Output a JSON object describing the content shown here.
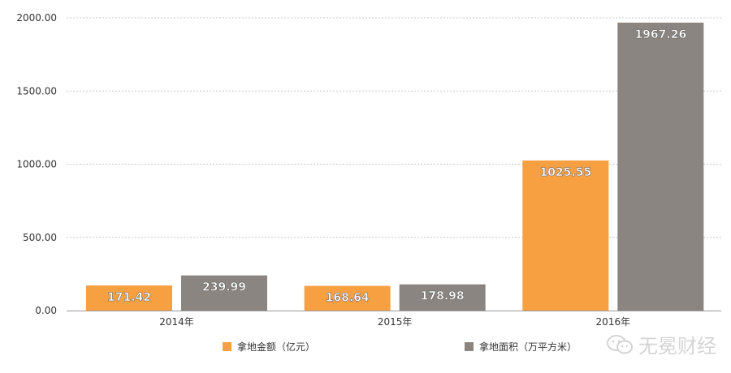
{
  "chart_data": {
    "type": "bar",
    "categories": [
      "2014年",
      "2015年",
      "2016年"
    ],
    "series": [
      {
        "name": "拿地金额（亿元）",
        "color": "#f7a042",
        "values": [
          171.42,
          168.64,
          1025.55
        ],
        "labels": [
          "171.42",
          "168.64",
          "1025.55"
        ]
      },
      {
        "name": "拿地面积（万平方米）",
        "color": "#8a8580",
        "values": [
          239.99,
          178.98,
          1967.26
        ],
        "labels": [
          "239.99",
          "178.98",
          "1967.26"
        ]
      }
    ],
    "yticks": [
      "0.00",
      "500.00",
      "1000.00",
      "1500.00",
      "2000.00"
    ],
    "ylim": [
      0,
      2000
    ],
    "grid": true,
    "legend_position": "bottom",
    "title": "",
    "xlabel": "",
    "ylabel": ""
  },
  "watermark": {
    "icon": "wechat-icon",
    "text": "无冕财经"
  }
}
